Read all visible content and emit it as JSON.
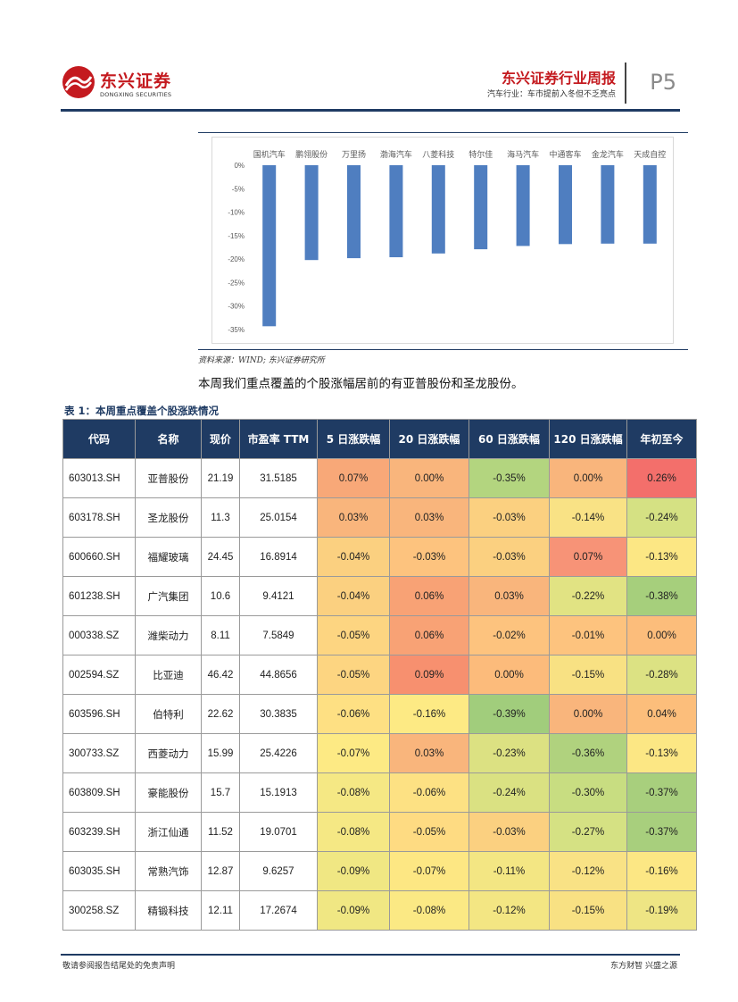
{
  "header": {
    "logo_cn": "东兴证券",
    "logo_en": "DONGXING SECURITIES",
    "report_title": "东兴证券行业周报",
    "subtitle": "汽车行业：车市提前入冬但不乏亮点",
    "page": "P5",
    "brand_color": "#c41a1f",
    "navy": "#1f3b63"
  },
  "chart_data": {
    "type": "bar",
    "categories": [
      "国机汽车",
      "鹏翎股份",
      "万里扬",
      "渤海汽车",
      "八菱科技",
      "特尔佳",
      "海马汽车",
      "中通客车",
      "金龙汽车",
      "天成自控"
    ],
    "values": [
      -34.3,
      -20.2,
      -19.8,
      -19.6,
      -18.8,
      -17.9,
      -17.2,
      -16.8,
      -16.7,
      -16.7
    ],
    "ylim": [
      -35,
      0
    ],
    "yticks": [
      "0%",
      "-5%",
      "-10%",
      "-15%",
      "-20%",
      "-25%",
      "-30%",
      "-35%"
    ],
    "color": "#4f7ec0",
    "grid": false
  },
  "source": "资料来源：WIND; 东兴证券研究所",
  "paragraph": "本周我们重点覆盖的个股涨幅居前的有亚普股份和圣龙股份。",
  "table_title": "表 1：本周重点覆盖个股涨跌情况",
  "table": {
    "headers": [
      "代码",
      "名称",
      "现价",
      "市盈率 TTM",
      "5 日涨跌幅",
      "20 日涨跌幅",
      "60 日涨跌幅",
      "120 日涨跌幅",
      "年初至今"
    ],
    "rows": [
      [
        "603013.SH",
        "亚普股份",
        "21.19",
        "31.5185",
        "0.07%",
        "0.00%",
        "-0.35%",
        "0.00%",
        "0.26%"
      ],
      [
        "603178.SH",
        "圣龙股份",
        "11.3",
        "25.0154",
        "0.03%",
        "0.03%",
        "-0.03%",
        "-0.14%",
        "-0.24%"
      ],
      [
        "600660.SH",
        "福耀玻璃",
        "24.45",
        "16.8914",
        "-0.04%",
        "-0.03%",
        "-0.03%",
        "0.07%",
        "-0.13%"
      ],
      [
        "601238.SH",
        "广汽集团",
        "10.6",
        "9.4121",
        "-0.04%",
        "0.06%",
        "0.03%",
        "-0.22%",
        "-0.38%"
      ],
      [
        "000338.SZ",
        "潍柴动力",
        "8.11",
        "7.5849",
        "-0.05%",
        "0.06%",
        "-0.02%",
        "-0.01%",
        "0.00%"
      ],
      [
        "002594.SZ",
        "比亚迪",
        "46.42",
        "44.8656",
        "-0.05%",
        "0.09%",
        "0.00%",
        "-0.15%",
        "-0.28%"
      ],
      [
        "603596.SH",
        "伯特利",
        "22.62",
        "30.3835",
        "-0.06%",
        "-0.16%",
        "-0.39%",
        "0.00%",
        "0.04%"
      ],
      [
        "300733.SZ",
        "西菱动力",
        "15.99",
        "25.4226",
        "-0.07%",
        "0.03%",
        "-0.23%",
        "-0.36%",
        "-0.13%"
      ],
      [
        "603809.SH",
        "豪能股份",
        "15.7",
        "15.1913",
        "-0.08%",
        "-0.06%",
        "-0.24%",
        "-0.30%",
        "-0.37%"
      ],
      [
        "603239.SH",
        "浙江仙通",
        "11.52",
        "19.0701",
        "-0.08%",
        "-0.05%",
        "-0.03%",
        "-0.27%",
        "-0.37%"
      ],
      [
        "603035.SH",
        "常熟汽饰",
        "12.87",
        "9.6257",
        "-0.09%",
        "-0.07%",
        "-0.11%",
        "-0.12%",
        "-0.16%"
      ],
      [
        "300258.SZ",
        "精锻科技",
        "12.11",
        "17.2674",
        "-0.09%",
        "-0.08%",
        "-0.12%",
        "-0.15%",
        "-0.19%"
      ]
    ],
    "cell_colors": [
      [
        "#f8a878",
        "#f9b57c",
        "#b3d57f",
        "#f9b57c",
        "#f36f6b"
      ],
      [
        "#f9b57c",
        "#f9b57c",
        "#fbd080",
        "#f9e285",
        "#d5e183"
      ],
      [
        "#fbd080",
        "#fdc37e",
        "#fbd080",
        "#f79377",
        "#fce784"
      ],
      [
        "#fbd080",
        "#f8a275",
        "#f9b57c",
        "#e1e383",
        "#a6cf7c"
      ],
      [
        "#fdd581",
        "#f8a275",
        "#fdc37e",
        "#fdc37e",
        "#fcbd7b"
      ],
      [
        "#fdd581",
        "#f7906f",
        "#fcbb7b",
        "#f8e183",
        "#dce283"
      ],
      [
        "#fee083",
        "#fdea84",
        "#a1cd7c",
        "#f9b57c",
        "#fcbe7b"
      ],
      [
        "#fdea84",
        "#f9b57c",
        "#dce182",
        "#b0d27e",
        "#fce784"
      ],
      [
        "#f5e884",
        "#fde183",
        "#dae182",
        "#c8dd81",
        "#a8cf7d"
      ],
      [
        "#f5e884",
        "#fedb82",
        "#fbd080",
        "#d5e183",
        "#a8cf7d"
      ],
      [
        "#f0e783",
        "#fde783",
        "#f3e683",
        "#f9e285",
        "#fce784"
      ],
      [
        "#f0e783",
        "#fbe984",
        "#f3e683",
        "#f8e183",
        "#eee584"
      ]
    ]
  },
  "footer": {
    "left": "敬请参阅报告结尾处的免责声明",
    "right": "东方财智  兴盛之源"
  }
}
